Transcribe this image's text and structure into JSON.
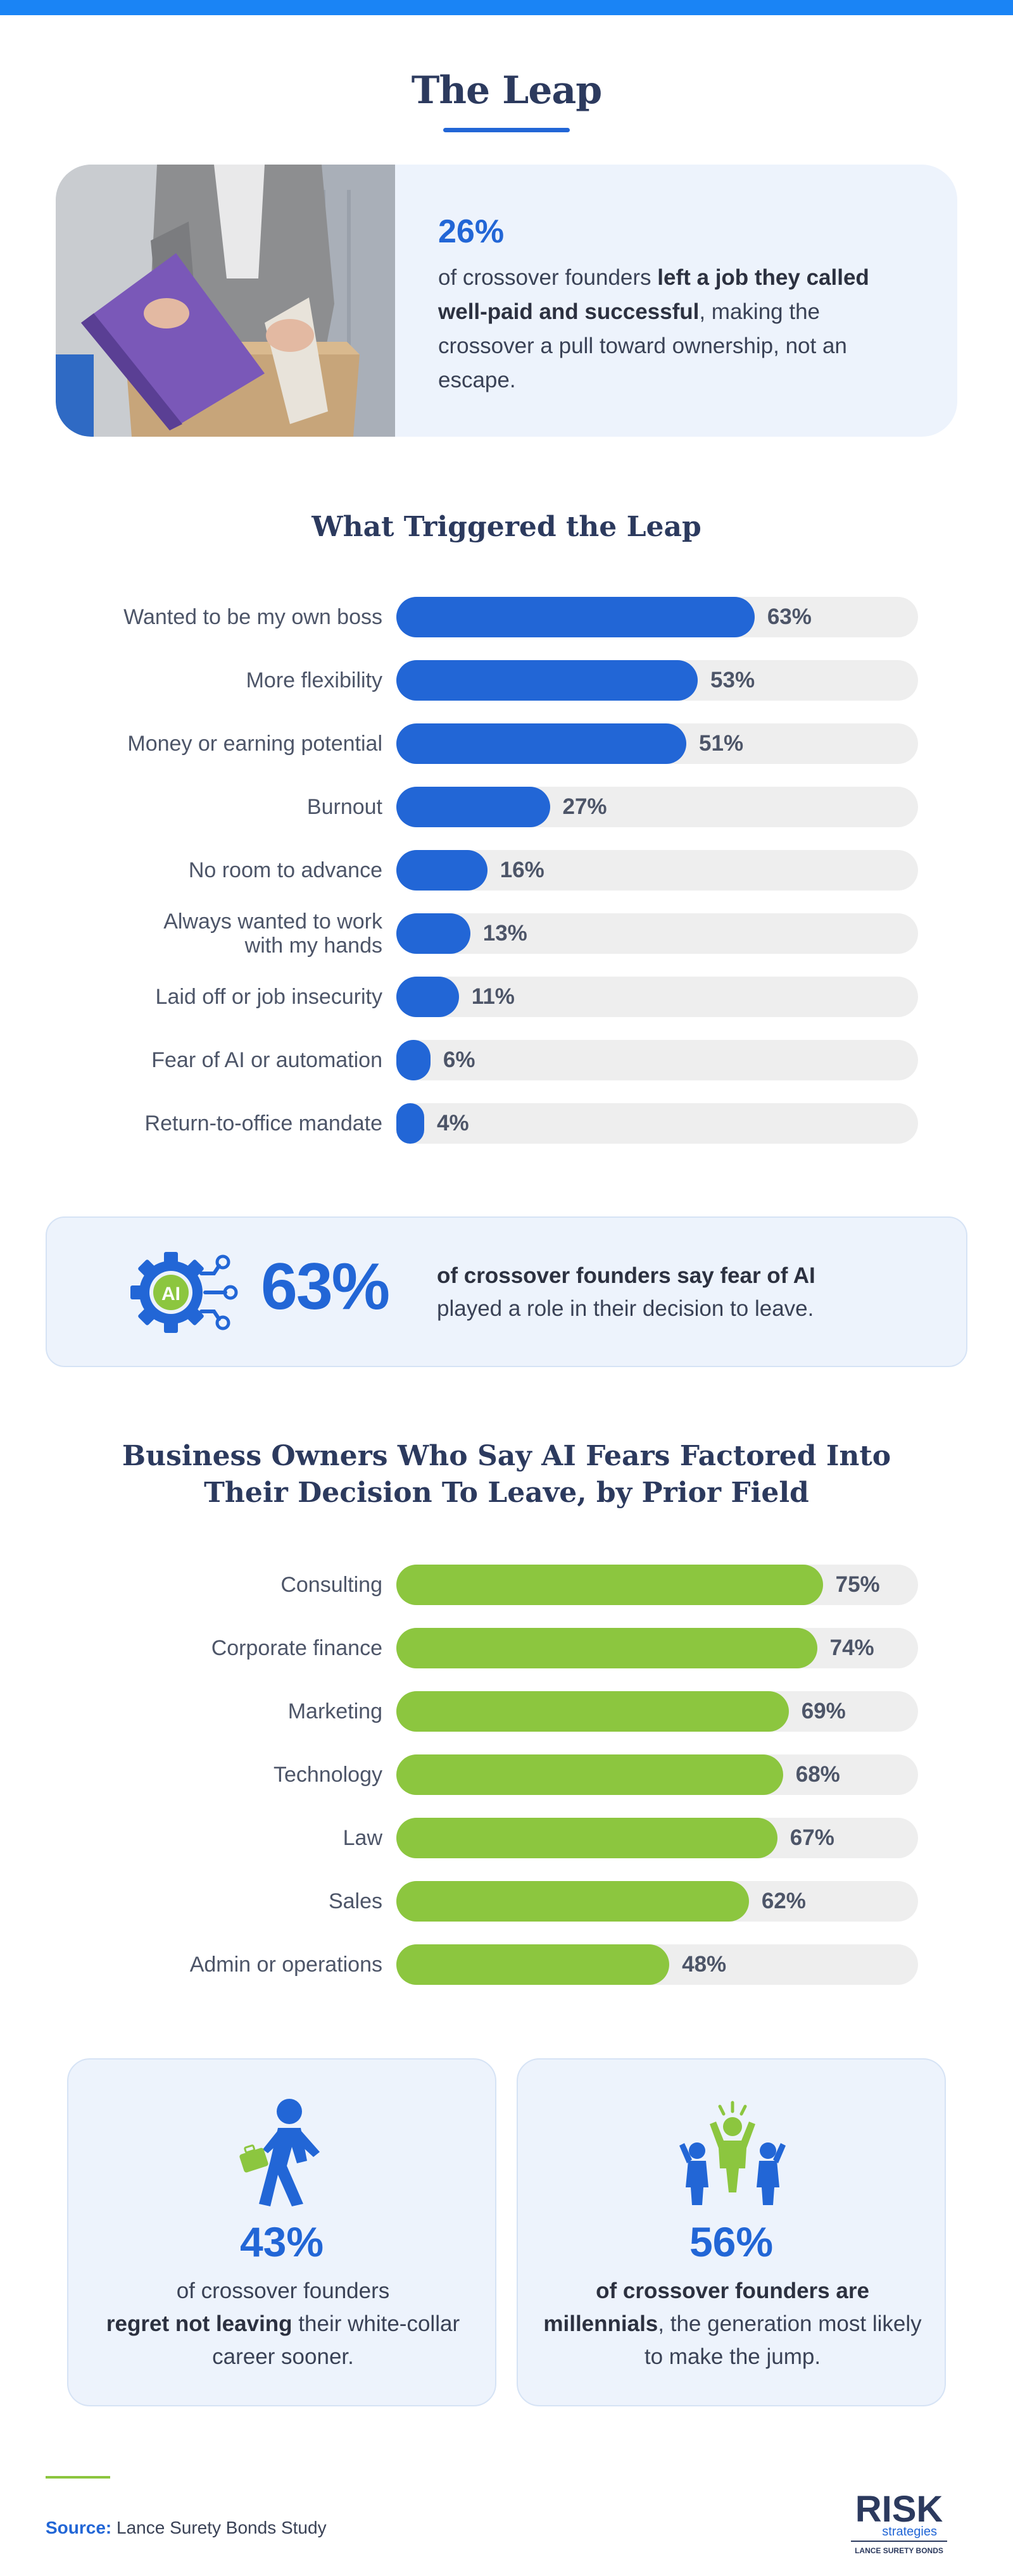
{
  "header": {
    "title": "The Leap"
  },
  "hero": {
    "percent": "26%",
    "text_before": "of crossover founders ",
    "text_bold": "left a job they called well-paid and successful",
    "text_after": ", making the crossover a pull toward ownership, not an escape."
  },
  "triggers": {
    "title": "What Triggered the Leap",
    "items": [
      {
        "label": "Wanted to be my own boss",
        "value": 63,
        "display": "63%"
      },
      {
        "label": "More flexibility",
        "value": 53,
        "display": "53%"
      },
      {
        "label": "Money or earning potential",
        "value": 51,
        "display": "51%"
      },
      {
        "label": "Burnout",
        "value": 27,
        "display": "27%"
      },
      {
        "label": "No room to advance",
        "value": 16,
        "display": "16%"
      },
      {
        "label": "Always wanted to work with my hands",
        "value": 13,
        "display": "13%"
      },
      {
        "label": "Laid off or job insecurity",
        "value": 11,
        "display": "11%"
      },
      {
        "label": "Fear of AI or automation",
        "value": 6,
        "display": "6%"
      },
      {
        "label": "Return-to-office mandate",
        "value": 4,
        "display": "4%"
      }
    ]
  },
  "ai_callout": {
    "icon_label": "AI",
    "percent": "63%",
    "text_bold": "of crossover founders say fear of AI",
    "text_after": "played a role in their decision to leave."
  },
  "fields": {
    "title_line1": "Business Owners Who Say AI Fears Factored Into",
    "title_line2": "Their Decision To Leave, by Prior Field",
    "items": [
      {
        "label": "Consulting",
        "value": 75,
        "display": "75%"
      },
      {
        "label": "Corporate finance",
        "value": 74,
        "display": "74%"
      },
      {
        "label": "Marketing",
        "value": 69,
        "display": "69%"
      },
      {
        "label": "Technology",
        "value": 68,
        "display": "68%"
      },
      {
        "label": "Law",
        "value": 67,
        "display": "67%"
      },
      {
        "label": "Sales",
        "value": 62,
        "display": "62%"
      },
      {
        "label": "Admin or operations",
        "value": 48,
        "display": "48%"
      }
    ]
  },
  "stats": {
    "left": {
      "percent": "43%",
      "text_before": "of crossover founders ",
      "text_bold": "regret not leaving",
      "text_after": " their white-collar career sooner."
    },
    "right": {
      "percent": "56%",
      "text_bold": "of crossover founders are millennials",
      "text_after": ", the generation most likely to make the jump."
    }
  },
  "footer": {
    "source_label": "Source:",
    "source_text": " Lance Surety Bonds Study",
    "logo_main": "RISK",
    "logo_sub": "strategies",
    "logo_tag": "LANCE SURETY BONDS"
  },
  "colors": {
    "blue": "#2266d6",
    "green": "#8cc63f",
    "navy": "#2c3a5e",
    "track": "#eeeeee"
  },
  "chart_data": [
    {
      "type": "bar",
      "orientation": "horizontal",
      "title": "What Triggered the Leap",
      "categories": [
        "Wanted to be my own boss",
        "More flexibility",
        "Money or earning potential",
        "Burnout",
        "No room to advance",
        "Always wanted to work with my hands",
        "Laid off or job insecurity",
        "Fear of AI or automation",
        "Return-to-office mandate"
      ],
      "values": [
        63,
        53,
        51,
        27,
        16,
        13,
        11,
        6,
        4
      ],
      "unit": "%",
      "xlim": [
        0,
        100
      ],
      "color": "#2266d6"
    },
    {
      "type": "bar",
      "orientation": "horizontal",
      "title": "Business Owners Who Say AI Fears Factored Into Their Decision To Leave, by Prior Field",
      "categories": [
        "Consulting",
        "Corporate finance",
        "Marketing",
        "Technology",
        "Law",
        "Sales",
        "Admin or operations"
      ],
      "values": [
        75,
        74,
        69,
        68,
        67,
        62,
        48
      ],
      "unit": "%",
      "xlim": [
        0,
        100
      ],
      "color": "#8cc63f"
    }
  ]
}
